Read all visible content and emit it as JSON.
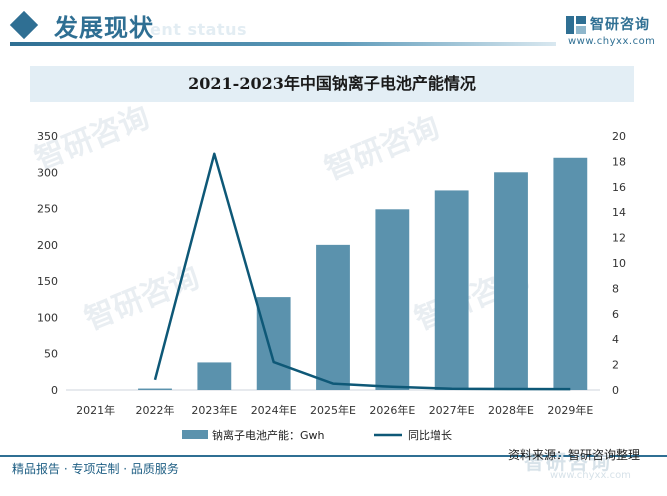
{
  "header": {
    "section_title": "发展现状",
    "ghost_subtitle": "ent status",
    "brand_name": "智研咨询",
    "brand_url": "www.chyxx.com"
  },
  "chart_title": "2021-2023年中国钠离子电池产能情况",
  "chart_data": {
    "type": "bar",
    "categories": [
      "2021年",
      "2022年",
      "2023年E",
      "2024年E",
      "2025年E",
      "2026年E",
      "2027年E",
      "2028年E",
      "2029年E"
    ],
    "series": [
      {
        "name": "钠离子电池产能：Gwh",
        "kind": "bar",
        "axis": "left",
        "color": "#5b92ad",
        "values": [
          0,
          2,
          38,
          128,
          200,
          249,
          275,
          300,
          320
        ]
      },
      {
        "name": "同比增长",
        "kind": "line",
        "axis": "right",
        "color": "#0e5877",
        "values": [
          null,
          0.8,
          18.6,
          2.2,
          0.5,
          0.25,
          0.1,
          0.08,
          0.07
        ]
      }
    ],
    "y_left": {
      "min": 0,
      "max": 350,
      "ticks": [
        0,
        50,
        100,
        150,
        200,
        250,
        300,
        350
      ]
    },
    "y_right": {
      "min": 0,
      "max": 20,
      "ticks": [
        0,
        2,
        4,
        6,
        8,
        10,
        12,
        14,
        16,
        18,
        20
      ]
    },
    "grid": false,
    "legend_position": "bottom"
  },
  "watermark": {
    "text": "智研咨询"
  },
  "footer": {
    "left_text": "精品报告 · 专项定制 · 品质服务",
    "source_text": "资料来源：智研咨询整理",
    "logo_text": "智研咨询",
    "logo_url": "www.chyxx.com"
  }
}
